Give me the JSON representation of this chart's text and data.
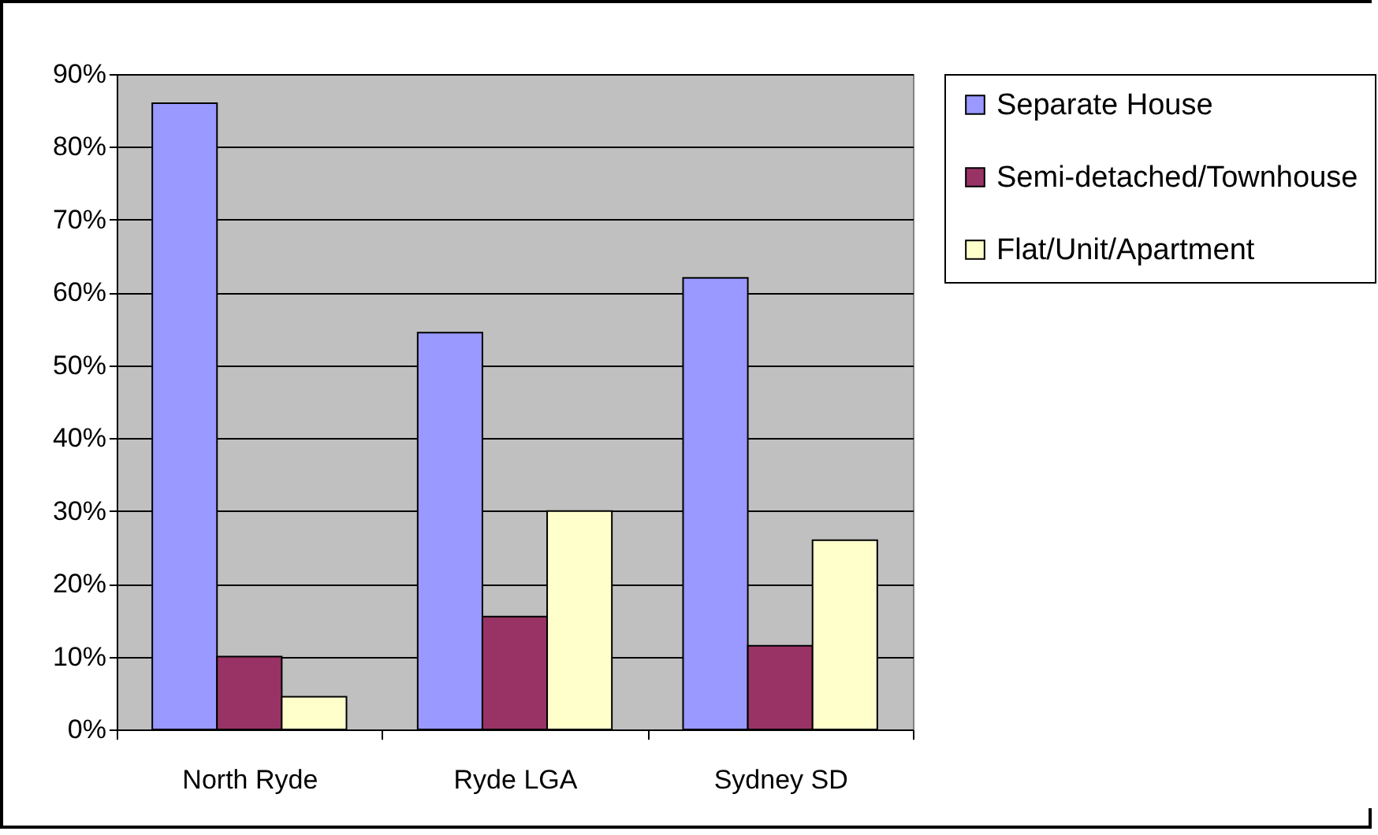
{
  "chart_data": {
    "type": "bar",
    "categories": [
      "North Ryde",
      "Ryde LGA",
      "Sydney SD"
    ],
    "series": [
      {
        "name": "Separate House",
        "color": "#9999ff",
        "values": [
          86,
          54.5,
          62
        ]
      },
      {
        "name": "Semi-detached/Townhouse",
        "color": "#993366",
        "values": [
          10,
          15.5,
          11.5
        ]
      },
      {
        "name": "Flat/Unit/Apartment",
        "color": "#ffffcc",
        "values": [
          4.5,
          30,
          26
        ]
      }
    ],
    "ylim": [
      0,
      90
    ],
    "yticks": [
      {
        "value": 0,
        "label": "0%"
      },
      {
        "value": 10,
        "label": "10%"
      },
      {
        "value": 20,
        "label": "20%"
      },
      {
        "value": 30,
        "label": "30%"
      },
      {
        "value": 40,
        "label": "40%"
      },
      {
        "value": 50,
        "label": "50%"
      },
      {
        "value": 60,
        "label": "60%"
      },
      {
        "value": 70,
        "label": "70%"
      },
      {
        "value": 80,
        "label": "80%"
      },
      {
        "value": 90,
        "label": "90%"
      }
    ],
    "grid": "y",
    "legend": "right"
  }
}
